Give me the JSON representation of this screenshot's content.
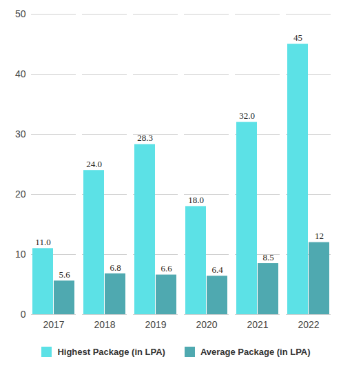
{
  "chart_data": {
    "type": "bar",
    "categories": [
      "2017",
      "2018",
      "2019",
      "2020",
      "2021",
      "2022"
    ],
    "series": [
      {
        "name": "Highest Package (in LPA)",
        "color": "#5ce1e6",
        "values": [
          11.0,
          24.0,
          28.3,
          18.0,
          32.0,
          45
        ],
        "value_labels": [
          "11.0",
          "24.0",
          "28.3",
          "18.0",
          "32.0",
          "45"
        ]
      },
      {
        "name": "Average Package (in LPA)",
        "color": "#4fa9b0",
        "values": [
          5.6,
          6.8,
          6.6,
          6.4,
          8.5,
          12
        ]
      }
    ],
    "ylim": [
      0,
      50
    ],
    "yticks": [
      0,
      10,
      20,
      30,
      40,
      50
    ],
    "grid": true,
    "data_labels": true,
    "legend": "bottom"
  }
}
